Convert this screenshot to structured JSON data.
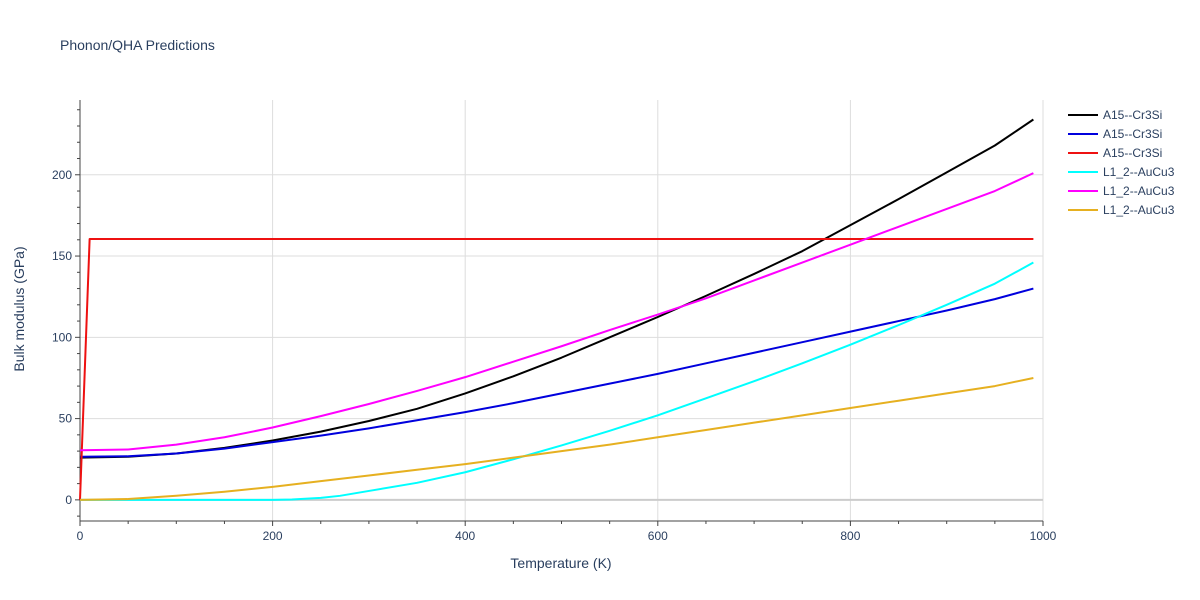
{
  "chart_data": {
    "type": "line",
    "title": "Phonon/QHA Predictions",
    "xlabel": "Temperature (K)",
    "ylabel": "Bulk modulus (GPa)",
    "xlim": [
      0,
      1000
    ],
    "ylim": [
      -13,
      246
    ],
    "x_ticks": [
      0,
      200,
      400,
      600,
      800,
      1000
    ],
    "y_ticks": [
      0,
      50,
      100,
      150,
      200
    ],
    "grid": true,
    "legend_position": "top-right",
    "series": [
      {
        "name": "A15--Cr3Si",
        "color": "#000000",
        "x": [
          0,
          50,
          100,
          150,
          200,
          250,
          300,
          350,
          400,
          450,
          500,
          550,
          600,
          650,
          700,
          750,
          800,
          850,
          900,
          950,
          990
        ],
        "y": [
          26,
          26.5,
          28.5,
          32,
          36.5,
          42,
          48.5,
          56,
          65.5,
          76,
          87.5,
          100,
          112.5,
          125.5,
          139,
          153,
          169,
          185,
          201.5,
          218,
          234
        ]
      },
      {
        "name": "A15--Cr3Si",
        "color": "#0000dd",
        "x": [
          0,
          50,
          100,
          150,
          200,
          250,
          300,
          350,
          400,
          450,
          500,
          550,
          600,
          650,
          700,
          750,
          800,
          850,
          900,
          950,
          990
        ],
        "y": [
          26.5,
          26.8,
          28.5,
          31.5,
          35.5,
          39.5,
          44,
          49,
          54,
          59.5,
          65.5,
          71.5,
          77.5,
          84,
          90.5,
          97,
          103.5,
          110,
          116.5,
          123.5,
          130
        ]
      },
      {
        "name": "A15--Cr3Si",
        "color": "#ee1111",
        "x": [
          0,
          10,
          990
        ],
        "y": [
          0,
          160.5,
          160.5
        ]
      },
      {
        "name": "L1_2--AuCu3",
        "color": "#00ffff",
        "x": [
          0,
          50,
          100,
          150,
          200,
          220,
          250,
          270,
          300,
          350,
          400,
          450,
          500,
          550,
          600,
          650,
          700,
          750,
          800,
          850,
          900,
          950,
          990
        ],
        "y": [
          0,
          0,
          0,
          0,
          0,
          0.2,
          1.2,
          2.5,
          5.5,
          10.5,
          17,
          25,
          33.5,
          42.5,
          52,
          62.5,
          73,
          84,
          95.5,
          107.5,
          120,
          133,
          146
        ]
      },
      {
        "name": "L1_2--AuCu3",
        "color": "#ff00ff",
        "x": [
          0,
          50,
          100,
          150,
          200,
          250,
          300,
          350,
          400,
          450,
          500,
          550,
          600,
          650,
          700,
          750,
          800,
          850,
          900,
          950,
          990
        ],
        "y": [
          30.5,
          31,
          34,
          38.5,
          44.5,
          51.5,
          59,
          67,
          75.5,
          85,
          94.5,
          104.5,
          114,
          124,
          135,
          146,
          157,
          168,
          179,
          190,
          201
        ]
      },
      {
        "name": "L1_2--AuCu3",
        "color": "#e6b020",
        "x": [
          0,
          50,
          100,
          150,
          200,
          250,
          300,
          350,
          400,
          450,
          500,
          550,
          600,
          650,
          700,
          750,
          800,
          850,
          900,
          950,
          990
        ],
        "y": [
          0,
          0.5,
          2.5,
          5,
          8,
          11.5,
          15,
          18.5,
          22,
          26,
          30,
          34,
          38.5,
          43,
          47.5,
          52,
          56.5,
          61,
          65.5,
          70,
          75
        ]
      }
    ]
  }
}
